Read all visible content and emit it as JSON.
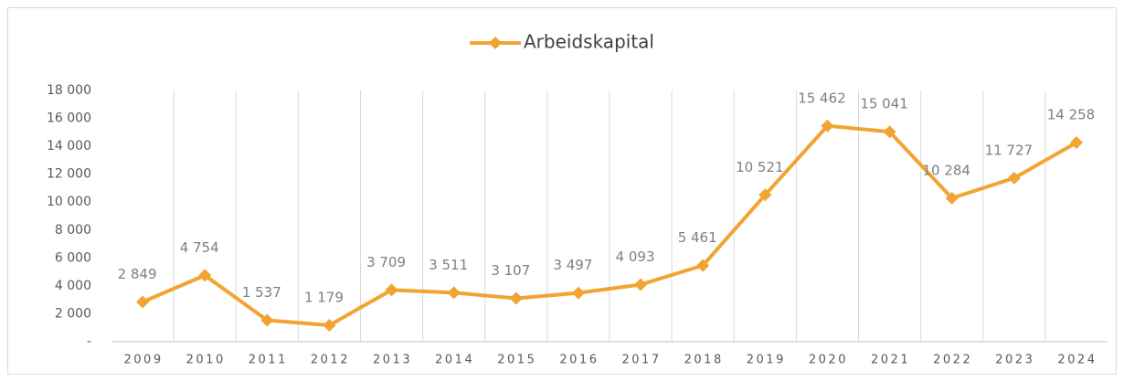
{
  "chart_data": {
    "type": "line",
    "categories": [
      "2009",
      "2010",
      "2011",
      "2012",
      "2013",
      "2014",
      "2015",
      "2016",
      "2017",
      "2018",
      "2019",
      "2020",
      "2021",
      "2022",
      "2023",
      "2024"
    ],
    "series": [
      {
        "name": "Arbeidskapital",
        "color": "#f2a432",
        "values": [
          2849,
          4754,
          1537,
          1179,
          3709,
          3511,
          3107,
          3497,
          4093,
          5461,
          10521,
          15462,
          15041,
          10284,
          11727,
          14258
        ],
        "value_labels": [
          "2 849",
          "4 754",
          "1 537",
          "1 179",
          "3 709",
          "3 511",
          "3 107",
          "3 497",
          "4 093",
          "5 461",
          "10 521",
          "15 462",
          "15 041",
          "10 284",
          "11 727",
          "14 258"
        ]
      }
    ],
    "ylim": [
      0,
      18000
    ],
    "yticks": [
      {
        "value": 0,
        "label": "-"
      },
      {
        "value": 2000,
        "label": "2 000"
      },
      {
        "value": 4000,
        "label": "4 000"
      },
      {
        "value": 6000,
        "label": "6 000"
      },
      {
        "value": 8000,
        "label": "8 000"
      },
      {
        "value": 10000,
        "label": "10 000"
      },
      {
        "value": 12000,
        "label": "12 000"
      },
      {
        "value": 14000,
        "label": "14 000"
      },
      {
        "value": 16000,
        "label": "16 000"
      },
      {
        "value": 18000,
        "label": "18 000"
      }
    ],
    "legend": "top"
  }
}
